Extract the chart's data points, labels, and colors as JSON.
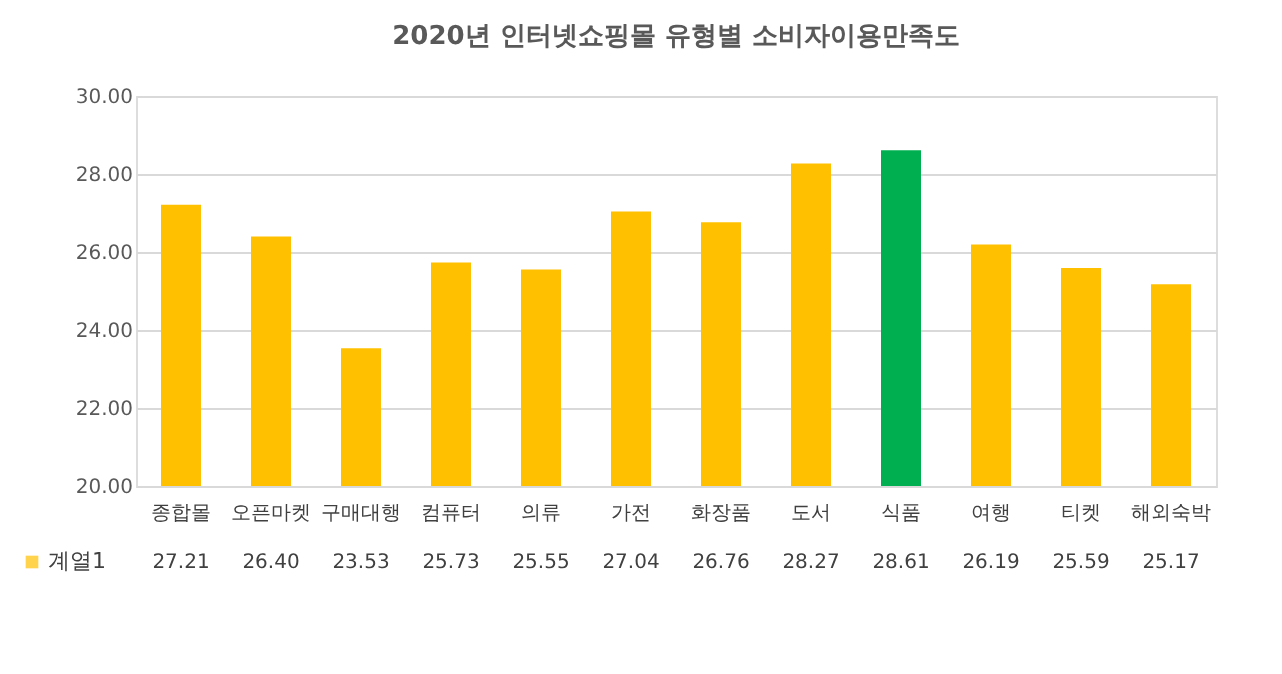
{
  "chart_data": {
    "type": "bar",
    "title": "2020년 인터넷쇼핑몰 유형별 소비자이용만족도",
    "categories": [
      "종합몰",
      "오픈마켓",
      "구매대행",
      "컴퓨터",
      "의류",
      "가전",
      "화장품",
      "도서",
      "식품",
      "여행",
      "티켓",
      "해외숙박"
    ],
    "series": [
      {
        "name": "계열1",
        "color": "#ffc000",
        "colors": [
          "#ffc000",
          "#ffc000",
          "#ffc000",
          "#ffc000",
          "#ffc000",
          "#ffc000",
          "#ffc000",
          "#ffc000",
          "#00b050",
          "#ffc000",
          "#ffc000",
          "#ffc000"
        ],
        "values": [
          27.21,
          26.4,
          23.53,
          25.73,
          25.55,
          27.04,
          26.76,
          28.27,
          28.61,
          26.19,
          25.59,
          25.17
        ],
        "value_labels": [
          "27.21",
          "26.40",
          "23.53",
          "25.73",
          "25.55",
          "27.04",
          "26.76",
          "28.27",
          "28.61",
          "26.19",
          "25.59",
          "25.17"
        ]
      }
    ],
    "ylim": [
      20,
      30
    ],
    "yticks": [
      {
        "value": 20,
        "label": "20.00"
      },
      {
        "value": 22,
        "label": "22.00"
      },
      {
        "value": 24,
        "label": "24.00"
      },
      {
        "value": 26,
        "label": "26.00"
      },
      {
        "value": 28,
        "label": "28.00"
      },
      {
        "value": 30,
        "label": "30.00"
      }
    ],
    "grid": "y",
    "legend": "bottom"
  }
}
